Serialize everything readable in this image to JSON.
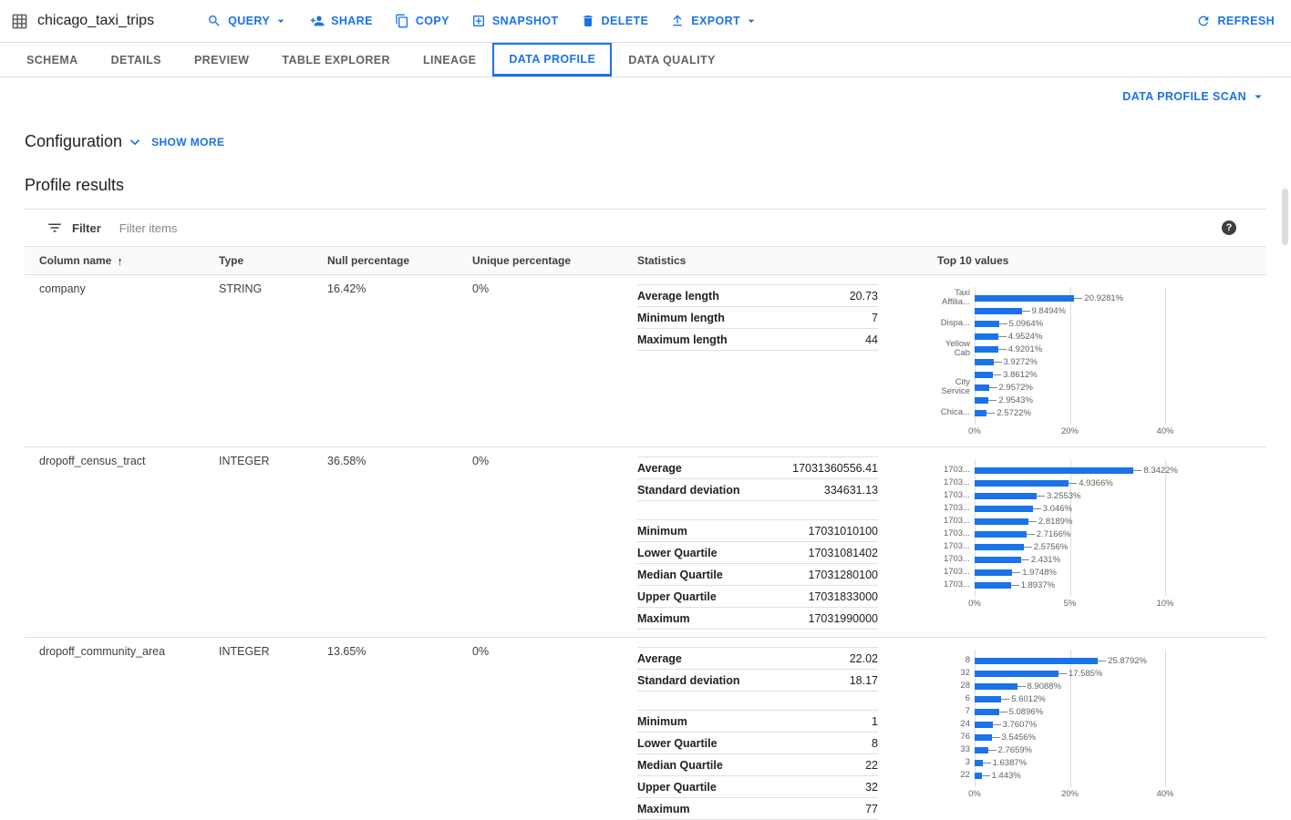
{
  "header": {
    "title": "chicago_taxi_trips",
    "actions": [
      {
        "label": "QUERY",
        "icon": "search-icon",
        "dropdown": true
      },
      {
        "label": "SHARE",
        "icon": "person-add-icon",
        "dropdown": false
      },
      {
        "label": "COPY",
        "icon": "copy-icon",
        "dropdown": false
      },
      {
        "label": "SNAPSHOT",
        "icon": "snapshot-icon",
        "dropdown": false
      },
      {
        "label": "DELETE",
        "icon": "delete-icon",
        "dropdown": false
      },
      {
        "label": "EXPORT",
        "icon": "export-icon",
        "dropdown": true
      }
    ],
    "refresh_label": "REFRESH"
  },
  "tabs": [
    {
      "label": "SCHEMA",
      "active": false
    },
    {
      "label": "DETAILS",
      "active": false
    },
    {
      "label": "PREVIEW",
      "active": false
    },
    {
      "label": "TABLE EXPLORER",
      "active": false
    },
    {
      "label": "LINEAGE",
      "active": false
    },
    {
      "label": "DATA PROFILE",
      "active": true
    },
    {
      "label": "DATA QUALITY",
      "active": false
    }
  ],
  "profile": {
    "scan_button_label": "DATA PROFILE SCAN",
    "configuration_label": "Configuration",
    "show_more_label": "SHOW MORE",
    "results_title": "Profile results",
    "filter_label": "Filter",
    "filter_placeholder": "Filter items"
  },
  "colors": {
    "accent": "#1a73e8",
    "bar": "#1a73e8"
  },
  "table": {
    "headers": [
      "Column name",
      "Type",
      "Null percentage",
      "Unique percentage",
      "Statistics",
      "Top 10 values"
    ],
    "rows": [
      {
        "column_name": "company",
        "type": "STRING",
        "null_percentage": "16.42%",
        "unique_percentage": "0%",
        "stat_groups": [
          [
            {
              "label": "Average length",
              "value": "20.73"
            },
            {
              "label": "Minimum length",
              "value": "7"
            },
            {
              "label": "Maximum length",
              "value": "44"
            }
          ]
        ],
        "chart": {
          "type": "bar",
          "orientation": "horizontal",
          "categories": [
            "Taxi\nAffilia...",
            "",
            "Dispa...",
            "",
            "Yellow\nCab",
            "",
            "",
            "City\nService",
            "",
            "Chica..."
          ],
          "values": [
            20.9281,
            9.8494,
            5.0964,
            4.9524,
            4.9201,
            3.9272,
            3.8612,
            2.9572,
            2.9543,
            2.5722
          ],
          "value_labels": [
            "20.9281%",
            "9.8494%",
            "5.0964%",
            "4.9524%",
            "4.9201%",
            "3.9272%",
            "3.8612%",
            "2.9572%",
            "2.9543%",
            "2.5722%"
          ],
          "x_ticks": [
            "0%",
            "20%",
            "40%"
          ],
          "x_max": 40
        }
      },
      {
        "column_name": "dropoff_census_tract",
        "type": "INTEGER",
        "null_percentage": "36.58%",
        "unique_percentage": "0%",
        "stat_groups": [
          [
            {
              "label": "Average",
              "value": "17031360556.41"
            },
            {
              "label": "Standard deviation",
              "value": "334631.13"
            }
          ],
          [
            {
              "label": "Minimum",
              "value": "17031010100"
            },
            {
              "label": "Lower Quartile",
              "value": "17031081402"
            },
            {
              "label": "Median Quartile",
              "value": "17031280100"
            },
            {
              "label": "Upper Quartile",
              "value": "17031833000"
            },
            {
              "label": "Maximum",
              "value": "17031990000"
            }
          ]
        ],
        "chart": {
          "type": "bar",
          "orientation": "horizontal",
          "categories": [
            "1703...",
            "1703...",
            "1703...",
            "1703...",
            "1703...",
            "1703...",
            "1703...",
            "1703...",
            "1703...",
            "1703..."
          ],
          "values": [
            8.3422,
            4.9366,
            3.2553,
            3.046,
            2.8189,
            2.7166,
            2.5756,
            2.431,
            1.9748,
            1.8937
          ],
          "value_labels": [
            "8.3422%",
            "4.9366%",
            "3.2553%",
            "3.046%",
            "2.8189%",
            "2.7166%",
            "2.5756%",
            "2.431%",
            "1.9748%",
            "1.8937%"
          ],
          "x_ticks": [
            "0%",
            "5%",
            "10%"
          ],
          "x_max": 10
        }
      },
      {
        "column_name": "dropoff_community_area",
        "type": "INTEGER",
        "null_percentage": "13.65%",
        "unique_percentage": "0%",
        "stat_groups": [
          [
            {
              "label": "Average",
              "value": "22.02"
            },
            {
              "label": "Standard deviation",
              "value": "18.17"
            }
          ],
          [
            {
              "label": "Minimum",
              "value": "1"
            },
            {
              "label": "Lower Quartile",
              "value": "8"
            },
            {
              "label": "Median Quartile",
              "value": "22"
            },
            {
              "label": "Upper Quartile",
              "value": "32"
            },
            {
              "label": "Maximum",
              "value": "77"
            }
          ]
        ],
        "chart": {
          "type": "bar",
          "orientation": "horizontal",
          "categories": [
            "8",
            "32",
            "28",
            "6",
            "7",
            "24",
            "76",
            "33",
            "3",
            "22"
          ],
          "values": [
            25.8792,
            17.585,
            8.9088,
            5.6012,
            5.0896,
            3.7607,
            3.5456,
            2.7659,
            1.6387,
            1.443
          ],
          "value_labels": [
            "25.8792%",
            "17.585%",
            "8.9088%",
            "5.6012%",
            "5.0896%",
            "3.7607%",
            "3.5456%",
            "2.7659%",
            "1.6387%",
            "1.443%"
          ],
          "x_ticks": [
            "0%",
            "20%",
            "40%"
          ],
          "x_max": 40
        }
      }
    ]
  }
}
